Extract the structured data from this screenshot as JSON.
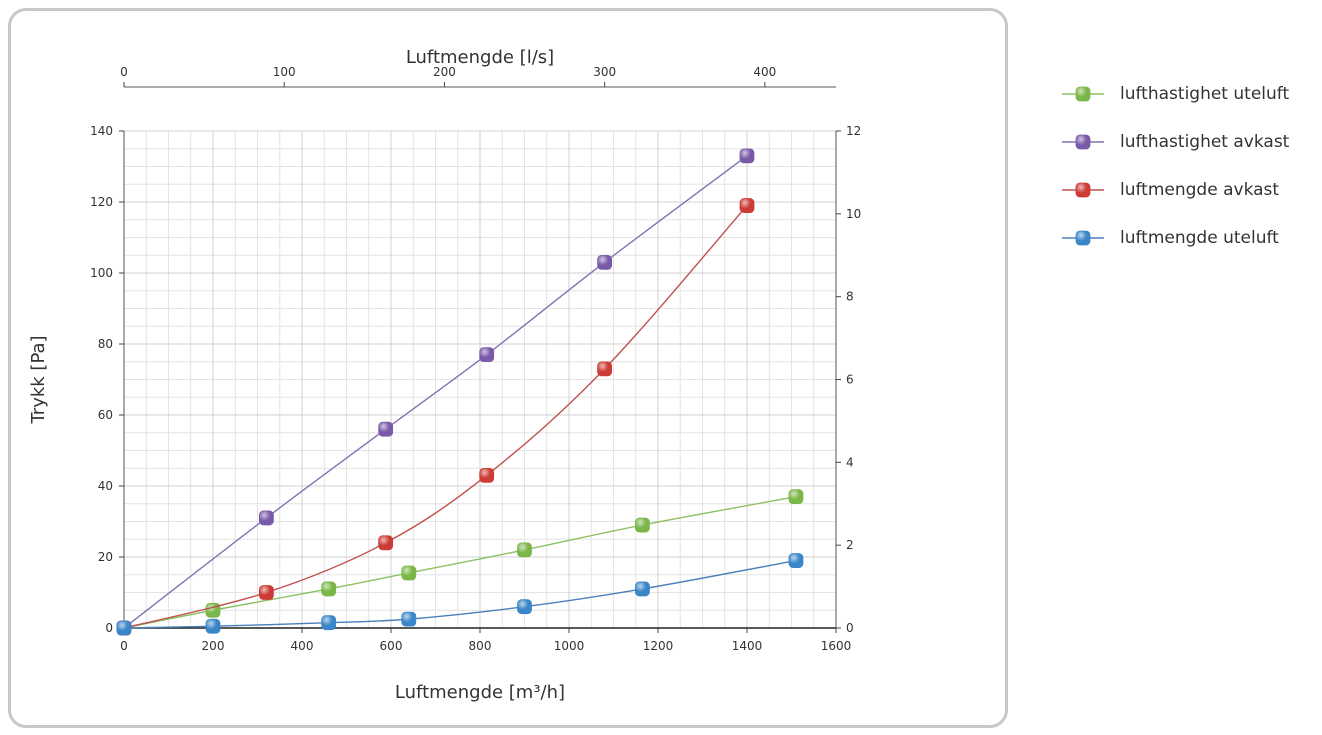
{
  "chart_data": {
    "type": "line",
    "title": "",
    "xlabel": "Luftmengde [m³/h]",
    "x2label": "Luftmengde [l/s]",
    "ylabel": "Trykk [Pa]",
    "y2label": "",
    "xlim": [
      0,
      1600
    ],
    "xticks": [
      0,
      200,
      400,
      600,
      800,
      1000,
      1200,
      1400,
      1600
    ],
    "x2lim": [
      0,
      444.4
    ],
    "x2ticks": [
      0,
      100,
      200,
      300,
      400
    ],
    "ylim": [
      0,
      140
    ],
    "yticks": [
      0,
      20,
      40,
      60,
      80,
      100,
      120,
      140
    ],
    "y2lim": [
      0,
      12
    ],
    "y2ticks": [
      0,
      2,
      4,
      6,
      8,
      10,
      12
    ],
    "grid": true,
    "legend_position": "right",
    "series": [
      {
        "name": "lufthastighet uteluft",
        "color": "#7ab648",
        "line": "#8dc063",
        "x": [
          0,
          200,
          460,
          640,
          900,
          1165,
          1510
        ],
        "y": [
          0,
          5,
          11,
          15.5,
          22,
          29,
          37
        ]
      },
      {
        "name": "lufthastighet avkast",
        "color": "#7a5aa8",
        "line": "#8172b2",
        "x": [
          0,
          320,
          588,
          815,
          1080,
          1400
        ],
        "y": [
          0,
          31,
          56,
          77,
          103,
          133
        ]
      },
      {
        "name": "luftmengde avkast",
        "color": "#cc3b35",
        "line": "#c0504d",
        "x": [
          0,
          320,
          588,
          815,
          1080,
          1400
        ],
        "y": [
          0,
          10,
          24,
          43,
          73,
          119
        ]
      },
      {
        "name": "luftmengde uteluft",
        "color": "#3a86c8",
        "line": "#4a7ebb",
        "x": [
          0,
          200,
          460,
          640,
          900,
          1165,
          1510
        ],
        "y": [
          0,
          0.5,
          1.5,
          2.5,
          6,
          11,
          19
        ]
      }
    ]
  }
}
